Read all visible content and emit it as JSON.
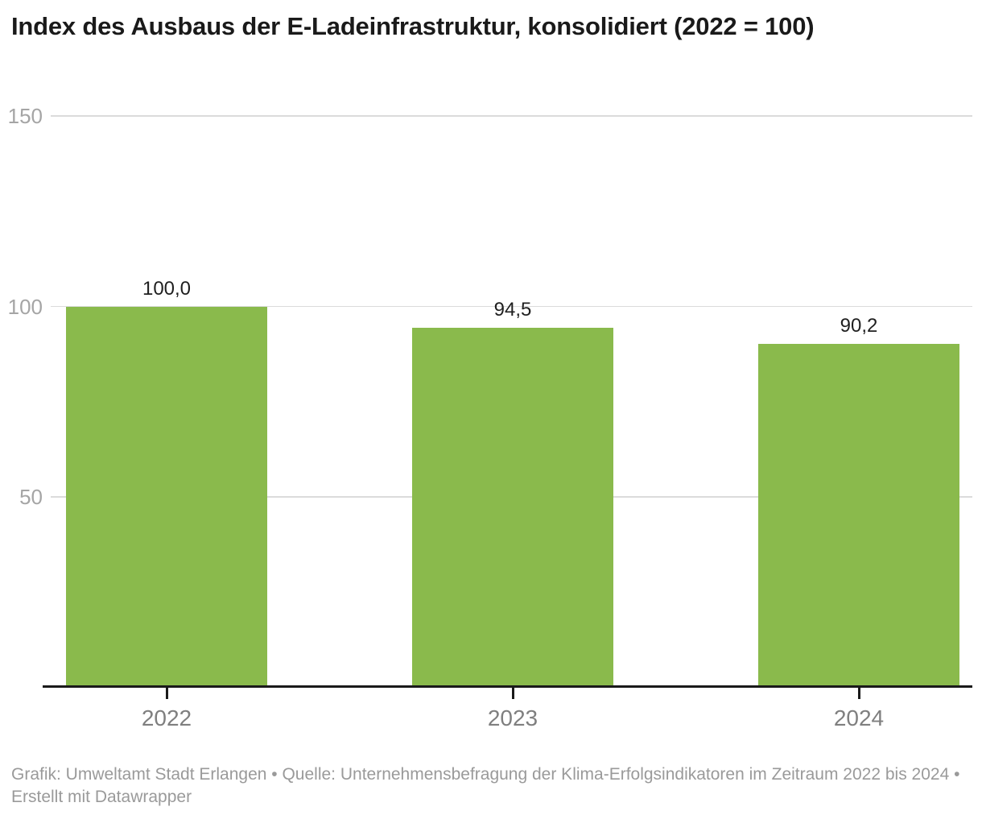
{
  "chart": {
    "title": "Index des Ausbaus der E-Ladeinfrastruktur, konsolidiert (2022 = 100)",
    "footer": "Grafik: Umweltamt Stadt Erlangen • Quelle: Unternehmensbefragung der Klima-Erfolgsindikatoren im Zeitraum 2022 bis 2024 • Erstellt mit Datawrapper"
  },
  "chart_data": {
    "type": "bar",
    "title": "Index des Ausbaus der E-Ladeinfrastruktur, konsolidiert (2022 = 100)",
    "categories": [
      "2022",
      "2023",
      "2024"
    ],
    "values": [
      100.0,
      94.5,
      90.2
    ],
    "value_labels": [
      "100,0",
      "94,5",
      "90,2"
    ],
    "xlabel": "",
    "ylabel": "",
    "ylim": [
      0,
      150
    ],
    "yticks": [
      50,
      100,
      150
    ],
    "ytick_labels": [
      "50",
      "100",
      "150"
    ],
    "grid": true,
    "legend": false,
    "bar_color": "#8aba4c",
    "source_note": "Grafik: Umweltamt Stadt Erlangen • Quelle: Unternehmensbefragung der Klima-Erfolgsindikatoren im Zeitraum 2022 bis 2024 • Erstellt mit Datawrapper"
  },
  "colors": {
    "bar": "#8aba4c",
    "title": "#1a1a1a",
    "value_label": "#1f1f1f",
    "x_label": "#7f7f7f",
    "y_label": "#a5a5a5",
    "gridline": "#dbdbdb",
    "axis": "#1a1a1a",
    "footer": "#9a9a9a",
    "background": "#ffffff"
  }
}
